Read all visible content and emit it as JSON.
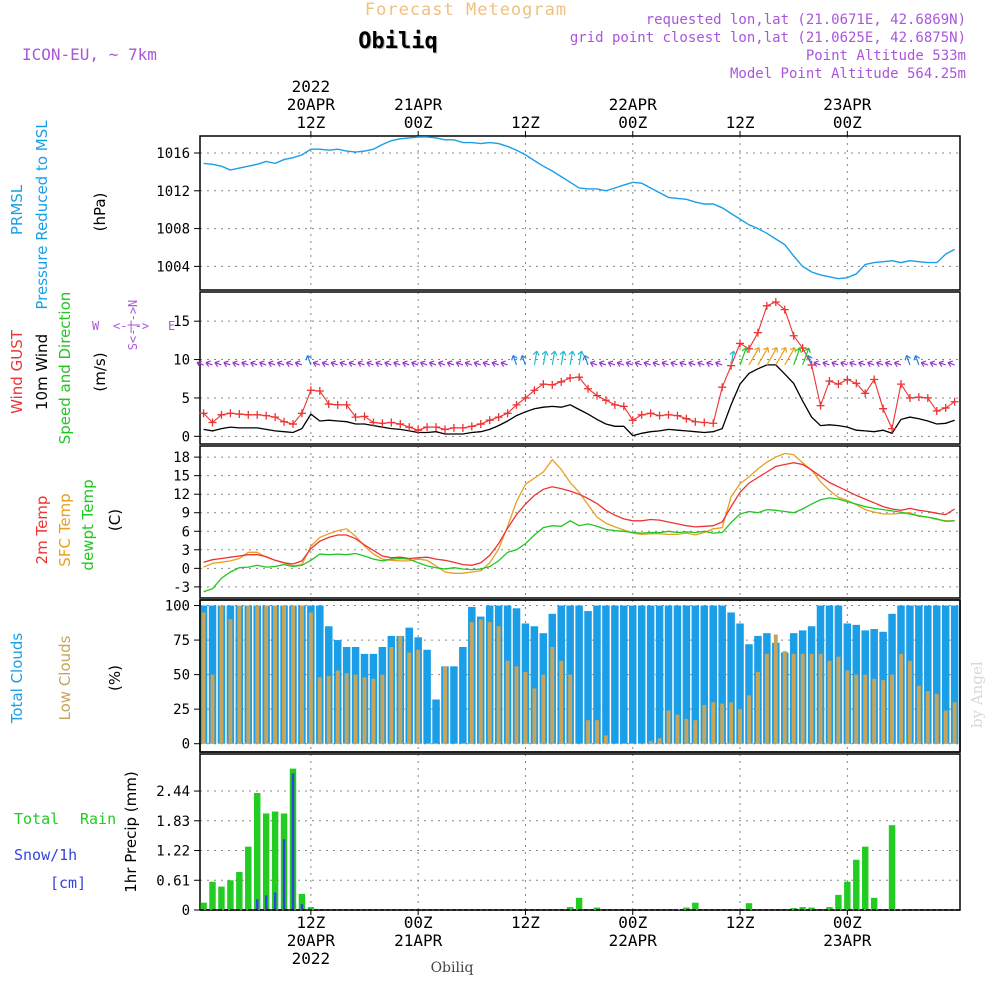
{
  "header": {
    "title": "Forecast Meteogram",
    "location": "Obiliq",
    "model": "ICON-EU, ~ 7km",
    "requested": "requested lon,lat (21.0671E, 42.6869N)",
    "grid_point": "grid point closest lon,lat (21.0625E, 42.6875N)",
    "point_altitude": "Point Altitude 533m",
    "model_altitude": "Model Point Altitude 564.25m",
    "footer_location": "Obiliq",
    "watermark": "by Angel"
  },
  "colors": {
    "pressure": "#1a9ee8",
    "gust": "#ee3333",
    "wind": "#000000",
    "wind_arrows": "#9933cc",
    "temp2m": "#ee3333",
    "sfc_temp": "#e8a020",
    "dewpt": "#22c622",
    "total_clouds": "#1a9ee8",
    "low_clouds": "#c8a45a",
    "rain": "#22cc22",
    "snow": "#3344dd",
    "purple_text": "#aa55dd",
    "title_orange": "#f0c080"
  },
  "time_axis": {
    "top_labels": [
      {
        "t": 12,
        "lines": [
          "2022",
          "20APR",
          "12Z"
        ]
      },
      {
        "t": 24,
        "lines": [
          "21APR",
          "00Z"
        ]
      },
      {
        "t": 36,
        "lines": [
          "12Z"
        ]
      },
      {
        "t": 48,
        "lines": [
          "22APR",
          "00Z"
        ]
      },
      {
        "t": 60,
        "lines": [
          "12Z"
        ]
      },
      {
        "t": 72,
        "lines": [
          "23APR",
          "00Z"
        ]
      }
    ],
    "bottom_labels": [
      {
        "t": 12,
        "lines": [
          "12Z",
          "20APR",
          "2022"
        ]
      },
      {
        "t": 24,
        "lines": [
          "00Z",
          "21APR"
        ]
      },
      {
        "t": 36,
        "lines": [
          "12Z"
        ]
      },
      {
        "t": 48,
        "lines": [
          "00Z",
          "22APR"
        ]
      },
      {
        "t": 60,
        "lines": [
          "12Z"
        ]
      },
      {
        "t": 72,
        "lines": [
          "00Z",
          "23APR"
        ]
      }
    ]
  },
  "panels": {
    "pressure": {
      "labels": [
        "PRMSL",
        "Pressure Reduced to MSL"
      ],
      "unit": "(hPa)"
    },
    "wind": {
      "labels": [
        "Wind GUST",
        "10m Wind",
        "Speed and Direction"
      ],
      "unit": "(m/s)",
      "compass": [
        "W",
        "<-|->",
        "E",
        "N",
        "S"
      ]
    },
    "temp": {
      "labels": [
        "2m Temp",
        "SFC Temp",
        "dewpt Temp"
      ],
      "unit": "(C)"
    },
    "clouds": {
      "labels": [
        "Total Clouds",
        "Low Clouds"
      ],
      "unit": "(%)"
    },
    "precip": {
      "labels": [
        "Total",
        "Rain",
        "Snow/1h",
        "[cm]"
      ],
      "unit": "1hr Precip (mm)"
    }
  },
  "chart_data": [
    {
      "type": "line",
      "title": "PRMSL Pressure Reduced to MSL",
      "ylabel": "(hPa)",
      "ylim": [
        1001.5,
        1017.8
      ],
      "yticks": [
        1004,
        1008,
        1012,
        1016
      ],
      "x_start_hour": 0,
      "x_step_hours": 1,
      "series": [
        {
          "name": "PRMSL",
          "values": [
            1014.9,
            1014.8,
            1014.6,
            1014.2,
            1014.4,
            1014.6,
            1014.8,
            1015.1,
            1014.9,
            1015.3,
            1015.5,
            1015.8,
            1016.4,
            1016.4,
            1016.3,
            1016.4,
            1016.2,
            1016.1,
            1016.2,
            1016.4,
            1016.9,
            1017.3,
            1017.5,
            1017.6,
            1017.7,
            1017.7,
            1017.6,
            1017.4,
            1017.4,
            1017.1,
            1017.1,
            1017.0,
            1017.1,
            1017.0,
            1016.7,
            1016.3,
            1015.8,
            1015.2,
            1014.6,
            1014.1,
            1013.5,
            1012.9,
            1012.3,
            1012.2,
            1012.2,
            1012.0,
            1012.3,
            1012.6,
            1012.9,
            1012.8,
            1012.3,
            1011.8,
            1011.3,
            1011.2,
            1011.1,
            1010.8,
            1010.6,
            1010.6,
            1010.2,
            1009.6,
            1009.0,
            1008.4,
            1008.0,
            1007.5,
            1006.9,
            1006.3,
            1005.1,
            1004.0,
            1003.4,
            1003.1,
            1002.9,
            1002.7,
            1002.8,
            1003.2,
            1004.2,
            1004.4,
            1004.5,
            1004.6,
            1004.4,
            1004.6,
            1004.5,
            1004.4,
            1004.4,
            1005.3,
            1005.8
          ]
        }
      ]
    },
    {
      "type": "line",
      "title": "Wind GUST / 10m Wind Speed and Direction",
      "ylabel": "(m/s)",
      "ylim": [
        -1,
        18.8
      ],
      "yticks": [
        0,
        5,
        10,
        15
      ],
      "x_start_hour": 0,
      "x_step_hours": 1,
      "series": [
        {
          "name": "Wind GUST",
          "values": [
            3.0,
            1.8,
            2.8,
            3.0,
            2.9,
            2.8,
            2.8,
            2.7,
            2.5,
            1.9,
            1.6,
            3.0,
            6.0,
            5.9,
            4.2,
            4.1,
            4.1,
            2.5,
            2.6,
            1.8,
            1.7,
            1.8,
            1.6,
            1.2,
            0.8,
            1.2,
            1.2,
            0.9,
            1.1,
            1.1,
            1.3,
            1.6,
            2.1,
            2.5,
            3.0,
            4.1,
            5.0,
            6.0,
            6.8,
            6.7,
            7.1,
            7.6,
            7.7,
            6.2,
            5.3,
            4.7,
            4.1,
            3.9,
            2.1,
            2.8,
            3.0,
            2.7,
            2.8,
            2.7,
            2.3,
            1.9,
            1.8,
            1.7,
            6.4,
            9.2,
            12.1,
            11.4,
            13.5,
            17.0,
            17.5,
            16.5,
            13.1,
            11.5,
            9.3,
            4.0,
            7.2,
            6.8,
            7.4,
            6.9,
            5.6,
            7.4,
            3.6,
            1.0,
            6.8,
            5.0,
            5.1,
            5.0,
            3.3,
            3.7,
            4.5
          ]
        },
        {
          "name": "10m Wind",
          "values": [
            0.9,
            0.7,
            1.0,
            1.2,
            1.1,
            1.1,
            1.1,
            0.9,
            0.7,
            0.6,
            0.5,
            1.0,
            2.9,
            2.0,
            2.1,
            2.0,
            1.9,
            1.6,
            1.6,
            1.4,
            1.2,
            1.0,
            0.9,
            0.7,
            0.5,
            0.5,
            0.6,
            0.3,
            0.3,
            0.3,
            0.5,
            0.6,
            0.9,
            1.4,
            2.0,
            2.7,
            3.2,
            3.6,
            3.8,
            3.9,
            3.8,
            4.1,
            3.5,
            2.9,
            2.2,
            1.6,
            1.3,
            1.3,
            0.1,
            0.4,
            0.6,
            0.7,
            0.9,
            0.8,
            0.7,
            0.6,
            0.5,
            0.6,
            1.0,
            4.1,
            6.8,
            8.2,
            8.8,
            9.3,
            9.3,
            8.1,
            6.9,
            4.6,
            2.5,
            1.4,
            1.5,
            1.4,
            1.2,
            0.8,
            0.7,
            0.6,
            0.8,
            0.4,
            2.2,
            2.5,
            2.3,
            2.0,
            1.6,
            1.7,
            2.1
          ]
        }
      ]
    },
    {
      "type": "line",
      "title": "2m Temp / SFC Temp / dewpt Temp",
      "ylabel": "(C)",
      "ylim": [
        -4.8,
        19.8
      ],
      "yticks": [
        -3,
        0,
        3,
        6,
        9,
        12,
        15,
        18
      ],
      "x_start_hour": 0,
      "x_step_hours": 1,
      "series": [
        {
          "name": "2m Temp",
          "values": [
            1.0,
            1.4,
            1.6,
            1.8,
            2.0,
            2.2,
            2.2,
            1.9,
            1.3,
            0.9,
            0.7,
            1.2,
            3.2,
            4.4,
            5.0,
            5.4,
            5.4,
            4.8,
            3.8,
            2.9,
            2.0,
            1.7,
            1.8,
            1.6,
            1.7,
            1.8,
            1.5,
            1.3,
            1.0,
            0.6,
            0.5,
            0.9,
            2.1,
            4.0,
            6.5,
            8.7,
            10.4,
            11.8,
            12.8,
            13.2,
            12.9,
            12.5,
            12.0,
            11.3,
            10.5,
            9.4,
            8.6,
            8.0,
            7.7,
            7.7,
            7.9,
            7.8,
            7.5,
            7.2,
            6.9,
            6.7,
            6.8,
            6.9,
            7.5,
            10.0,
            12.3,
            13.8,
            14.7,
            15.6,
            16.5,
            16.8,
            17.1,
            16.8,
            15.9,
            14.9,
            13.9,
            13.2,
            12.5,
            11.8,
            11.2,
            10.6,
            10.0,
            9.6,
            9.4,
            9.7,
            9.4,
            9.2,
            8.9,
            8.7,
            9.6
          ]
        },
        {
          "name": "SFC Temp",
          "values": [
            0.2,
            0.8,
            1.0,
            1.2,
            1.6,
            2.6,
            2.6,
            1.8,
            1.3,
            0.9,
            0.4,
            0.6,
            3.6,
            5.0,
            5.6,
            6.1,
            6.4,
            5.2,
            3.6,
            2.3,
            1.5,
            1.3,
            1.2,
            1.2,
            1.5,
            1.3,
            0.4,
            -0.6,
            -0.8,
            -0.8,
            -0.6,
            -0.4,
            0.9,
            3.1,
            6.8,
            10.8,
            13.6,
            14.6,
            15.6,
            17.6,
            16.0,
            13.9,
            12.3,
            10.3,
            8.3,
            7.3,
            6.7,
            6.2,
            5.7,
            5.5,
            5.6,
            5.6,
            5.5,
            5.5,
            5.7,
            5.4,
            5.8,
            6.4,
            6.6,
            11.6,
            13.7,
            14.8,
            16.1,
            17.2,
            18.0,
            18.6,
            18.4,
            17.1,
            15.9,
            14.0,
            12.6,
            11.5,
            11.0,
            10.3,
            9.5,
            9.1,
            8.8,
            8.8,
            8.9,
            9.0,
            8.4,
            8.3,
            7.9,
            7.7,
            7.7
          ]
        },
        {
          "name": "dewpt Temp",
          "values": [
            -3.8,
            -3.3,
            -1.6,
            -0.6,
            0.1,
            0.2,
            0.5,
            0.2,
            0.3,
            0.6,
            0.3,
            0.5,
            1.3,
            2.3,
            2.2,
            2.3,
            2.2,
            2.4,
            2.0,
            1.5,
            1.2,
            1.5,
            1.6,
            1.5,
            0.9,
            0.4,
            0.1,
            -0.1,
            0.1,
            -0.1,
            -0.2,
            -0.1,
            0.3,
            1.2,
            2.6,
            3.0,
            4.0,
            5.4,
            6.6,
            6.9,
            6.8,
            7.7,
            6.9,
            7.2,
            6.8,
            6.3,
            6.1,
            6.0,
            5.8,
            5.7,
            5.8,
            5.8,
            6.0,
            5.8,
            5.9,
            5.8,
            6.0,
            5.7,
            5.8,
            7.4,
            8.8,
            9.2,
            9.0,
            9.5,
            9.4,
            9.2,
            9.0,
            9.6,
            10.4,
            11.1,
            11.4,
            11.2,
            10.8,
            10.4,
            10.0,
            9.7,
            9.5,
            9.3,
            9.1,
            8.8,
            8.5,
            8.3,
            8.0,
            7.6,
            7.7
          ]
        }
      ]
    },
    {
      "type": "bar",
      "title": "Total Clouds / Low Clouds",
      "ylabel": "(%)",
      "ylim": [
        -6,
        104
      ],
      "yticks": [
        0,
        25,
        50,
        75,
        100
      ],
      "x_start_hour": 0,
      "x_step_hours": 1,
      "series": [
        {
          "name": "Total Clouds",
          "values": [
            100,
            100,
            100,
            100,
            100,
            100,
            100,
            100,
            100,
            100,
            100,
            100,
            100,
            100,
            85,
            75,
            70,
            70,
            65,
            65,
            70,
            78,
            78,
            84,
            77,
            68,
            32,
            56,
            56,
            70,
            99,
            92,
            100,
            100,
            100,
            98,
            87,
            85,
            80,
            94,
            100,
            100,
            100,
            96,
            100,
            100,
            100,
            100,
            100,
            100,
            100,
            100,
            100,
            100,
            100,
            100,
            100,
            100,
            100,
            95,
            87,
            72,
            78,
            80,
            73,
            66,
            80,
            82,
            85,
            100,
            100,
            100,
            87,
            86,
            82,
            83,
            81,
            94,
            100,
            100,
            100,
            100,
            100,
            100,
            100
          ]
        },
        {
          "name": "Low Clouds",
          "values": [
            95,
            50,
            100,
            90,
            100,
            100,
            100,
            100,
            100,
            100,
            100,
            100,
            95,
            48,
            49,
            53,
            51,
            50,
            48,
            47,
            50,
            70,
            78,
            66,
            68,
            0,
            0,
            56,
            0,
            0,
            88,
            90,
            88,
            85,
            60,
            56,
            52,
            40,
            50,
            70,
            60,
            50,
            0,
            17,
            17,
            6,
            0,
            0,
            0,
            0,
            2,
            4,
            24,
            21,
            18,
            17,
            28,
            30,
            29,
            30,
            25,
            35,
            52,
            65,
            79,
            67,
            65,
            65,
            65,
            65,
            60,
            63,
            53,
            50,
            50,
            47,
            46,
            50,
            65,
            60,
            42,
            38,
            36,
            24,
            30
          ]
        }
      ]
    },
    {
      "type": "bar",
      "title": "1hr Precip (mm)",
      "ylabel": "1hr Precip (mm)",
      "ylim": [
        0,
        3.2
      ],
      "yticks": [
        0,
        0.61,
        1.22,
        1.83,
        2.44
      ],
      "x_start_hour": 0,
      "x_step_hours": 1,
      "series": [
        {
          "name": "Total Rain",
          "values": [
            0.15,
            0.58,
            0.48,
            0.61,
            0.78,
            1.3,
            2.4,
            1.98,
            2.02,
            1.98,
            2.9,
            0.33,
            0.06,
            0,
            0,
            0,
            0,
            0,
            0,
            0,
            0,
            0,
            0,
            0,
            0,
            0,
            0,
            0,
            0,
            0,
            0,
            0,
            0,
            0,
            0,
            0,
            0,
            0,
            0,
            0,
            0,
            0.06,
            0.25,
            0,
            0.05,
            0,
            0,
            0,
            0,
            0,
            0,
            0,
            0,
            0.02,
            0.05,
            0.15,
            0,
            0,
            0,
            0,
            0,
            0.14,
            0,
            0,
            0,
            0,
            0.04,
            0.06,
            0.05,
            0,
            0.06,
            0.31,
            0.58,
            1.03,
            1.3,
            0.25,
            0,
            1.74,
            0.02,
            0,
            0,
            0,
            0,
            0,
            0
          ]
        },
        {
          "name": "Snow/1h",
          "values": [
            0,
            0,
            0,
            0,
            0,
            0,
            0.22,
            0.3,
            0.36,
            1.45,
            2.8,
            0.12,
            0,
            0,
            0,
            0,
            0,
            0,
            0,
            0,
            0,
            0,
            0,
            0,
            0,
            0,
            0,
            0,
            0,
            0,
            0,
            0,
            0,
            0,
            0,
            0,
            0,
            0,
            0,
            0,
            0,
            0,
            0,
            0,
            0,
            0,
            0,
            0,
            0,
            0,
            0,
            0,
            0,
            0,
            0,
            0,
            0,
            0,
            0,
            0,
            0,
            0,
            0,
            0,
            0,
            0,
            0,
            0,
            0,
            0,
            0,
            0,
            0,
            0,
            0,
            0,
            0,
            0,
            0,
            0,
            0,
            0,
            0,
            0,
            0
          ]
        }
      ]
    }
  ]
}
